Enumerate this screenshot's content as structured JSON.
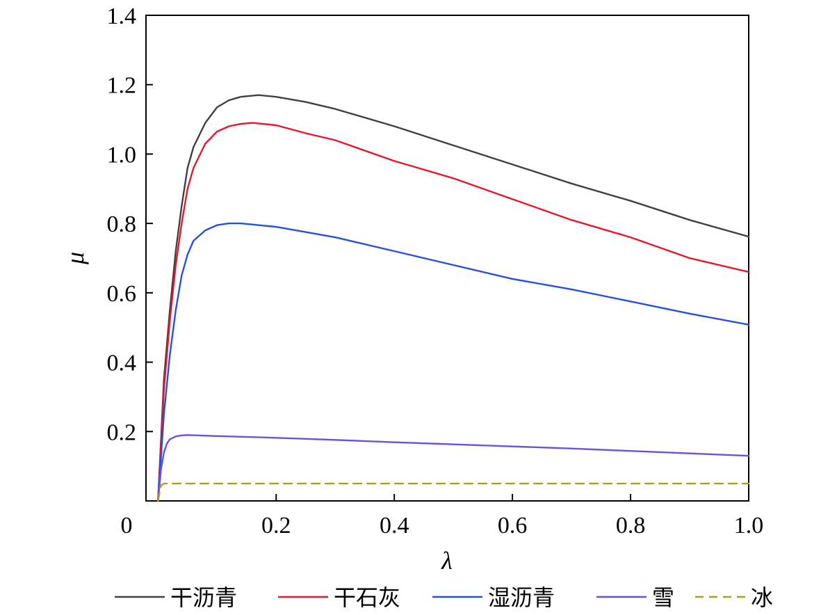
{
  "chart_data": {
    "type": "line",
    "xlabel": "λ",
    "ylabel": "μ",
    "xlim": [
      0,
      1.0
    ],
    "ylim": [
      0,
      1.4
    ],
    "x_ticks": [
      0,
      0.2,
      0.4,
      0.6,
      0.8,
      1.0
    ],
    "x_tick_labels": [
      "0",
      "0.2",
      "0.4",
      "0.6",
      "0.8",
      "1.0"
    ],
    "y_ticks": [
      0.2,
      0.4,
      0.6,
      0.8,
      1.0,
      1.2,
      1.4
    ],
    "y_tick_labels": [
      "0.2",
      "0.4",
      "0.6",
      "0.8",
      "1.0",
      "1.2",
      "1.4"
    ],
    "grid": false,
    "legend_position": "bottom",
    "series": [
      {
        "name": "干沥青",
        "color": "#404040",
        "dash": false,
        "x": [
          0,
          0.01,
          0.02,
          0.03,
          0.04,
          0.05,
          0.06,
          0.08,
          0.1,
          0.12,
          0.14,
          0.17,
          0.2,
          0.25,
          0.3,
          0.4,
          0.5,
          0.6,
          0.7,
          0.8,
          0.9,
          1.0
        ],
        "y": [
          0,
          0.35,
          0.55,
          0.72,
          0.85,
          0.96,
          1.02,
          1.09,
          1.135,
          1.155,
          1.165,
          1.17,
          1.165,
          1.15,
          1.13,
          1.08,
          1.025,
          0.97,
          0.915,
          0.865,
          0.81,
          0.762
        ]
      },
      {
        "name": "干石灰",
        "color": "#e8162b",
        "dash": false,
        "x": [
          0,
          0.01,
          0.02,
          0.03,
          0.04,
          0.05,
          0.06,
          0.08,
          0.1,
          0.12,
          0.14,
          0.16,
          0.2,
          0.25,
          0.3,
          0.4,
          0.5,
          0.6,
          0.7,
          0.8,
          0.9,
          1.0
        ],
        "y": [
          0,
          0.32,
          0.52,
          0.68,
          0.8,
          0.9,
          0.96,
          1.03,
          1.065,
          1.08,
          1.087,
          1.09,
          1.083,
          1.06,
          1.04,
          0.98,
          0.93,
          0.87,
          0.81,
          0.76,
          0.7,
          0.66
        ]
      },
      {
        "name": "湿沥青",
        "color": "#2450e0",
        "dash": false,
        "x": [
          0,
          0.01,
          0.02,
          0.03,
          0.04,
          0.05,
          0.06,
          0.08,
          0.1,
          0.12,
          0.14,
          0.2,
          0.3,
          0.4,
          0.5,
          0.6,
          0.7,
          0.8,
          0.9,
          1.0
        ],
        "y": [
          0,
          0.25,
          0.42,
          0.55,
          0.65,
          0.71,
          0.75,
          0.78,
          0.795,
          0.8,
          0.8,
          0.79,
          0.76,
          0.72,
          0.68,
          0.64,
          0.61,
          0.575,
          0.54,
          0.508
        ]
      },
      {
        "name": "雪",
        "color": "#6b4fe8",
        "dash": false,
        "x": [
          0,
          0.005,
          0.01,
          0.015,
          0.02,
          0.03,
          0.04,
          0.05,
          0.1,
          0.2,
          0.3,
          0.4,
          0.5,
          0.6,
          0.7,
          0.8,
          0.9,
          1.0
        ],
        "y": [
          0,
          0.09,
          0.14,
          0.165,
          0.178,
          0.186,
          0.189,
          0.19,
          0.187,
          0.182,
          0.176,
          0.169,
          0.163,
          0.157,
          0.151,
          0.144,
          0.137,
          0.13
        ]
      },
      {
        "name": "冰",
        "color": "#a5a020",
        "dash": true,
        "x": [
          0,
          0.005,
          0.01,
          0.02,
          0.2,
          0.4,
          0.6,
          0.8,
          1.0
        ],
        "y": [
          0,
          0.045,
          0.05,
          0.05,
          0.05,
          0.05,
          0.05,
          0.05,
          0.05
        ]
      }
    ]
  }
}
